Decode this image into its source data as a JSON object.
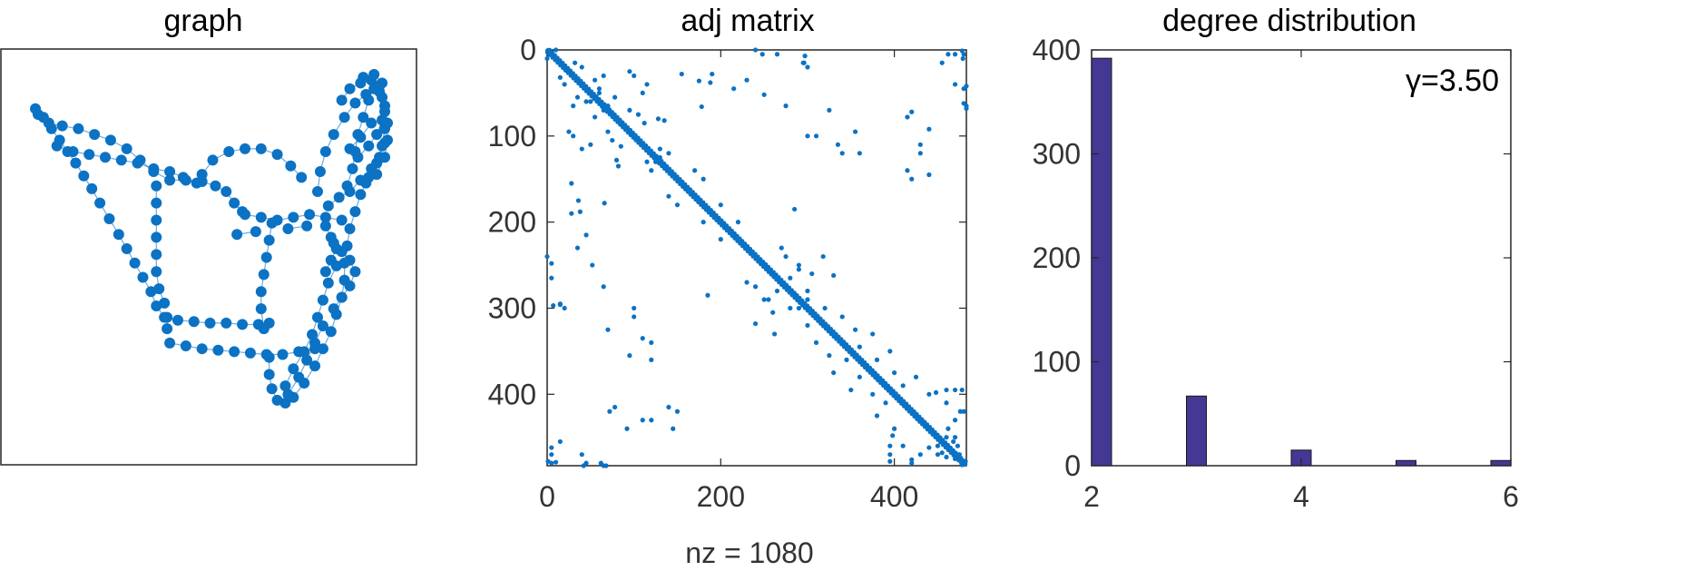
{
  "chart_data": [
    {
      "type": "scatter",
      "title": "graph",
      "axes_visible": false,
      "marker_color": "#0b72c4",
      "edge_color": "#0b72c4",
      "nodes": [
        [
          -9.2,
          9.0
        ],
        [
          -8.6,
          8.4
        ],
        [
          -8.0,
          7.6
        ],
        [
          -7.4,
          6.8
        ],
        [
          -6.8,
          6.0
        ],
        [
          -6.2,
          5.2
        ],
        [
          -5.6,
          4.3
        ],
        [
          -5.0,
          3.4
        ],
        [
          -4.4,
          2.4
        ],
        [
          -3.7,
          1.3
        ],
        [
          -3.0,
          0.2
        ],
        [
          -2.4,
          -0.8
        ],
        [
          -1.8,
          -1.8
        ],
        [
          -1.2,
          -2.8
        ],
        [
          -0.6,
          -3.8
        ],
        [
          -0.2,
          -4.8
        ],
        [
          0.4,
          -5.6
        ],
        [
          1.4,
          -5.8
        ],
        [
          2.6,
          -5.9
        ],
        [
          3.8,
          -6.0
        ],
        [
          5.0,
          -6.0
        ],
        [
          6.2,
          -6.1
        ],
        [
          7.4,
          -6.1
        ],
        [
          8.2,
          -6.0
        ],
        [
          -9.0,
          8.6
        ],
        [
          -8.2,
          8.0
        ],
        [
          -7.2,
          7.8
        ],
        [
          -6.0,
          7.6
        ],
        [
          -4.8,
          7.2
        ],
        [
          -3.6,
          6.8
        ],
        [
          -2.4,
          6.2
        ],
        [
          -1.4,
          5.4
        ],
        [
          -0.4,
          4.6
        ],
        [
          0.8,
          4.0
        ],
        [
          2.0,
          4.0
        ],
        [
          3.2,
          3.9
        ],
        [
          4.2,
          3.6
        ],
        [
          5.0,
          3.2
        ],
        [
          5.6,
          2.4
        ],
        [
          6.2,
          1.8
        ],
        [
          -7.6,
          6.4
        ],
        [
          -6.4,
          6.0
        ],
        [
          -5.2,
          5.8
        ],
        [
          -4.0,
          5.6
        ],
        [
          -2.8,
          5.4
        ],
        [
          -1.6,
          5.2
        ],
        [
          -0.4,
          4.8
        ],
        [
          0.8,
          4.6
        ],
        [
          1.8,
          4.2
        ],
        [
          2.8,
          3.8
        ],
        [
          -0.2,
          3.6
        ],
        [
          -0.2,
          2.4
        ],
        [
          -0.2,
          1.2
        ],
        [
          -0.2,
          0.0
        ],
        [
          -0.2,
          -1.2
        ],
        [
          -0.2,
          -2.4
        ],
        [
          0.0,
          -3.6
        ],
        [
          0.4,
          -4.6
        ],
        [
          3.2,
          4.4
        ],
        [
          4.0,
          5.4
        ],
        [
          5.2,
          6.0
        ],
        [
          6.4,
          6.2
        ],
        [
          7.6,
          6.2
        ],
        [
          8.8,
          5.8
        ],
        [
          9.8,
          5.0
        ],
        [
          10.6,
          4.2
        ],
        [
          6.4,
          1.6
        ],
        [
          7.6,
          1.4
        ],
        [
          8.8,
          1.2
        ],
        [
          10.0,
          1.4
        ],
        [
          11.2,
          1.6
        ],
        [
          12.4,
          1.4
        ],
        [
          13.6,
          1.2
        ],
        [
          8.4,
          1.0
        ],
        [
          8.2,
          -0.2
        ],
        [
          8.0,
          -1.4
        ],
        [
          7.8,
          -2.6
        ],
        [
          7.6,
          -3.8
        ],
        [
          7.6,
          -5.0
        ],
        [
          7.8,
          -6.4
        ],
        [
          11.8,
          3.2
        ],
        [
          12.0,
          4.6
        ],
        [
          12.4,
          6.0
        ],
        [
          13.0,
          7.2
        ],
        [
          13.8,
          8.4
        ],
        [
          14.6,
          9.4
        ],
        [
          15.4,
          10.0
        ],
        [
          16.0,
          10.4
        ],
        [
          16.4,
          10.6
        ],
        [
          16.6,
          9.8
        ],
        [
          16.8,
          8.8
        ],
        [
          16.8,
          7.6
        ],
        [
          16.6,
          6.4
        ],
        [
          16.2,
          5.2
        ],
        [
          15.6,
          4.2
        ],
        [
          15.0,
          3.0
        ],
        [
          14.6,
          1.8
        ],
        [
          14.2,
          0.6
        ],
        [
          14.0,
          -0.6
        ],
        [
          13.8,
          -1.8
        ],
        [
          13.8,
          -3.0
        ],
        [
          13.6,
          -4.2
        ],
        [
          13.2,
          -5.4
        ],
        [
          12.8,
          -6.6
        ],
        [
          12.2,
          -7.8
        ],
        [
          11.6,
          -9.0
        ],
        [
          10.8,
          -10.2
        ],
        [
          10.0,
          -11.2
        ],
        [
          9.4,
          -11.6
        ],
        [
          8.8,
          -11.4
        ],
        [
          8.4,
          -10.6
        ],
        [
          8.2,
          -9.6
        ],
        [
          8.2,
          -8.4
        ],
        [
          9.6,
          -11.0
        ],
        [
          10.4,
          -9.8
        ],
        [
          11.0,
          -8.6
        ],
        [
          11.6,
          -7.4
        ],
        [
          12.2,
          -6.2
        ],
        [
          0.8,
          -7.4
        ],
        [
          2.0,
          -7.6
        ],
        [
          3.2,
          -7.8
        ],
        [
          4.4,
          -7.9
        ],
        [
          5.6,
          -8.0
        ],
        [
          6.8,
          -8.1
        ],
        [
          8.0,
          -8.2
        ],
        [
          9.2,
          -8.2
        ],
        [
          10.4,
          -8.0
        ],
        [
          11.6,
          -7.8
        ],
        [
          0.6,
          -6.4
        ],
        [
          0.6,
          -5.6
        ],
        [
          15.2,
          11.2
        ],
        [
          15.8,
          11.0
        ],
        [
          16.4,
          10.2
        ],
        [
          16.8,
          9.2
        ],
        [
          17.0,
          8.0
        ],
        [
          17.0,
          6.8
        ],
        [
          16.8,
          5.6
        ],
        [
          16.2,
          4.4
        ],
        [
          15.4,
          3.8
        ],
        [
          15.6,
          9.6
        ],
        [
          15.2,
          8.4
        ],
        [
          14.8,
          7.2
        ],
        [
          14.6,
          6.0
        ],
        [
          14.4,
          4.8
        ],
        [
          14.0,
          3.6
        ],
        [
          13.2,
          -2.0
        ],
        [
          12.6,
          -3.2
        ],
        [
          12.2,
          -4.4
        ],
        [
          11.8,
          -5.6
        ],
        [
          11.4,
          -6.8
        ],
        [
          10.8,
          -8.0
        ],
        [
          10.0,
          -9.2
        ],
        [
          9.4,
          -10.4
        ],
        [
          13.6,
          9.6
        ],
        [
          14.2,
          10.4
        ],
        [
          15.0,
          10.8
        ],
        [
          16.0,
          11.4
        ],
        [
          16.6,
          10.8
        ],
        [
          14.8,
          5.6
        ],
        [
          15.6,
          6.4
        ],
        [
          16.2,
          7.2
        ],
        [
          16.6,
          8.2
        ],
        [
          15.8,
          8.0
        ],
        [
          15.0,
          7.0
        ],
        [
          14.2,
          6.2
        ],
        [
          12.6,
          2.2
        ],
        [
          13.4,
          2.8
        ],
        [
          14.2,
          3.2
        ],
        [
          15.0,
          4.0
        ],
        [
          15.8,
          4.8
        ],
        [
          16.4,
          5.6
        ],
        [
          16.8,
          6.6
        ],
        [
          13.0,
          -0.4
        ],
        [
          13.6,
          -1.0
        ],
        [
          14.2,
          -1.6
        ],
        [
          14.6,
          -2.4
        ],
        [
          14.2,
          -3.4
        ],
        [
          13.6,
          -4.2
        ],
        [
          13.0,
          -5.0
        ],
        [
          12.4,
          0.8
        ],
        [
          12.8,
          0.0
        ],
        [
          13.2,
          -0.8
        ],
        [
          12.8,
          -1.6
        ],
        [
          12.4,
          -2.4
        ],
        [
          5.8,
          0.2
        ],
        [
          7.2,
          0.4
        ],
        [
          9.6,
          0.6
        ],
        [
          11.0,
          0.8
        ]
      ]
    },
    {
      "type": "scatter",
      "title": "adj matrix",
      "xlabel": "nz = 1080",
      "xlim": [
        0,
        483
      ],
      "ylim": [
        0,
        483
      ],
      "y_reversed": true,
      "xticks": [
        0,
        200,
        400
      ],
      "yticks": [
        0,
        100,
        200,
        300,
        400
      ],
      "marker_color": "#0b72c4",
      "nnz": 1080,
      "diagonal_band": true,
      "offdiag_points": [
        [
          10,
          0
        ],
        [
          32,
          15
        ],
        [
          40,
          20
        ],
        [
          55,
          35
        ],
        [
          60,
          50
        ],
        [
          78,
          55
        ],
        [
          30,
          65
        ],
        [
          45,
          60
        ],
        [
          65,
          70
        ],
        [
          95,
          70
        ],
        [
          105,
          75
        ],
        [
          112,
          85
        ],
        [
          128,
          80
        ],
        [
          135,
          82
        ],
        [
          155,
          28
        ],
        [
          190,
          28
        ],
        [
          188,
          38
        ],
        [
          215,
          45
        ],
        [
          240,
          0
        ],
        [
          248,
          5
        ],
        [
          265,
          5
        ],
        [
          275,
          65
        ],
        [
          296,
          15
        ],
        [
          297,
          7
        ],
        [
          300,
          100
        ],
        [
          335,
          110
        ],
        [
          340,
          120
        ],
        [
          360,
          120
        ],
        [
          415,
          140
        ],
        [
          420,
          150
        ],
        [
          420,
          72
        ],
        [
          430,
          110
        ],
        [
          455,
          15
        ],
        [
          462,
          5
        ],
        [
          479,
          10
        ],
        [
          478,
          1
        ],
        [
          485,
          42
        ],
        [
          484,
          65
        ],
        [
          485,
          68
        ],
        [
          30,
          100
        ],
        [
          50,
          110
        ],
        [
          40,
          115
        ],
        [
          25,
          95
        ],
        [
          36,
          175
        ],
        [
          66,
          178
        ],
        [
          35,
          230
        ],
        [
          52,
          250
        ],
        [
          15,
          295
        ],
        [
          20,
          300
        ],
        [
          70,
          325
        ],
        [
          100,
          310
        ],
        [
          95,
          355
        ],
        [
          78,
          415
        ],
        [
          92,
          440
        ],
        [
          120,
          430
        ],
        [
          145,
          440
        ],
        [
          40,
          470
        ],
        [
          5,
          480
        ],
        [
          45,
          480
        ],
        [
          62,
          480
        ],
        [
          5,
          470
        ],
        [
          115,
          130
        ],
        [
          130,
          125
        ],
        [
          140,
          120
        ],
        [
          150,
          150
        ],
        [
          170,
          140
        ],
        [
          180,
          150
        ],
        [
          200,
          180
        ],
        [
          220,
          200
        ],
        [
          230,
          270
        ],
        [
          265,
          280
        ],
        [
          275,
          240
        ],
        [
          290,
          255
        ],
        [
          305,
          260
        ],
        [
          318,
          240
        ],
        [
          320,
          300
        ],
        [
          340,
          310
        ],
        [
          355,
          325
        ],
        [
          360,
          345
        ],
        [
          375,
          330
        ],
        [
          380,
          360
        ],
        [
          395,
          350
        ],
        [
          400,
          375
        ],
        [
          410,
          390
        ],
        [
          425,
          380
        ],
        [
          440,
          400
        ],
        [
          460,
          410
        ],
        [
          470,
          395
        ],
        [
          478,
          395
        ],
        [
          480,
          420
        ],
        [
          470,
          450
        ],
        [
          462,
          440
        ],
        [
          450,
          460
        ],
        [
          455,
          468
        ],
        [
          460,
          473
        ],
        [
          475,
          470
        ],
        [
          482,
          478
        ],
        [
          398,
          448
        ],
        [
          395,
          460
        ],
        [
          430,
          470
        ],
        [
          420,
          476
        ],
        [
          300,
          280
        ],
        [
          262,
          330
        ],
        [
          290,
          300
        ],
        [
          250,
          290
        ],
        [
          185,
          285
        ]
      ]
    },
    {
      "type": "bar",
      "title": "degree distribution",
      "annotation": "γ=3.50",
      "categories": [
        2,
        3,
        4,
        5,
        6
      ],
      "values": [
        392,
        67,
        15,
        5,
        5
      ],
      "xlim": [
        2,
        6
      ],
      "ylim": [
        0,
        400
      ],
      "xticks": [
        2,
        4,
        6
      ],
      "yticks": [
        0,
        100,
        200,
        300,
        400
      ],
      "bar_color": "#433894"
    }
  ]
}
